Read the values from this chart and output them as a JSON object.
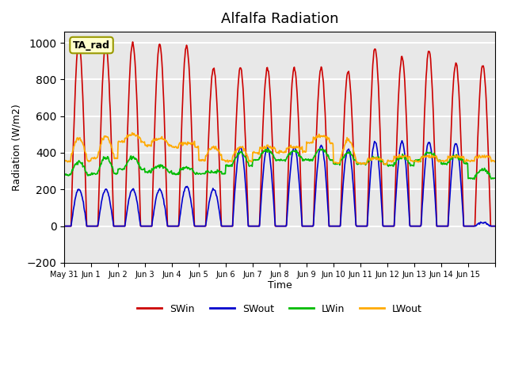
{
  "title": "Alfalfa Radiation",
  "xlabel": "Time",
  "ylabel": "Radiation (W/m2)",
  "ylim": [
    -200,
    1060
  ],
  "xlim": [
    0,
    16
  ],
  "background_color": "#e8e8e8",
  "grid_color": "white",
  "annotation_text": "TA_rad",
  "annotation_bg": "#ffffcc",
  "annotation_border": "#999900",
  "series_colors": {
    "SWin": "#cc0000",
    "SWout": "#0000cc",
    "LWin": "#00bb00",
    "LWout": "#ffaa00"
  },
  "tick_positions": [
    0,
    1,
    2,
    3,
    4,
    5,
    6,
    7,
    8,
    9,
    10,
    11,
    12,
    13,
    14,
    15,
    16
  ],
  "tick_labels": [
    "May 31",
    "Jun 1",
    "Jun 2",
    "Jun 3",
    "Jun 4",
    "Jun 5",
    "Jun 6",
    "Jun 7",
    "Jun 8",
    "Jun 9",
    "Jun 10",
    "Jun 11",
    "Jun 12",
    "Jun 13",
    "Jun 14",
    "Jun 15",
    ""
  ],
  "num_days": 16,
  "dt_hours": 0.5,
  "sunrise": 6.0,
  "sunset": 20.0,
  "day_peaks_SWin": [
    1000,
    990,
    1000,
    990,
    985,
    860,
    860,
    860,
    860,
    860,
    840,
    970,
    920,
    960,
    890,
    880
  ],
  "day_peaks_SWout": [
    200,
    200,
    200,
    200,
    215,
    200,
    430,
    430,
    430,
    440,
    420,
    460,
    460,
    460,
    450,
    20
  ],
  "lwin_base_day": [
    290,
    295,
    320,
    305,
    295,
    295,
    340,
    370,
    370,
    370,
    350,
    350,
    340,
    370,
    350,
    270
  ],
  "lwin_peak_day": [
    350,
    375,
    375,
    330,
    320,
    295,
    400,
    415,
    410,
    420,
    400,
    375,
    380,
    400,
    380,
    310
  ],
  "lwout_base_day": [
    375,
    390,
    480,
    460,
    450,
    380,
    375,
    420,
    425,
    475,
    365,
    360,
    375,
    375,
    375,
    375
  ],
  "lwout_peak_day": [
    480,
    490,
    500,
    480,
    450,
    430,
    430,
    430,
    430,
    490,
    470,
    370,
    380,
    380,
    380,
    380
  ],
  "legend_entries": [
    "SWin",
    "SWout",
    "LWin",
    "LWout"
  ]
}
